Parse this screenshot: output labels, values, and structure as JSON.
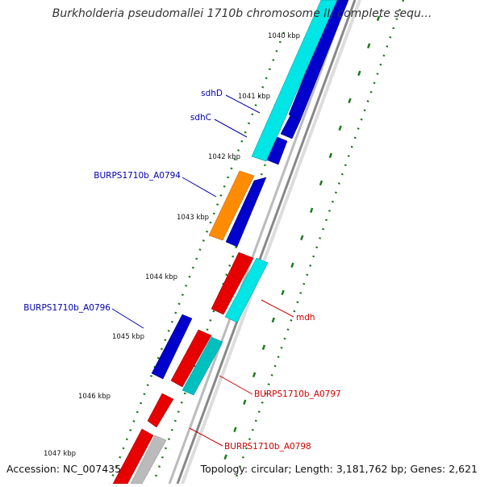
{
  "title": "Burkholderia pseudomallei 1710b chromosome II, complete sequ...",
  "footer": {
    "accession": "Accession: NC_007435",
    "summary": "Topology: circular; Length: 3,181,762 bp; Genes: 2,621"
  },
  "colors": {
    "forward_cds": "#0000cc",
    "reverse_cds": "#e60000",
    "cyan_feature": "#00e5e5",
    "orange_feature": "#ff8c00",
    "gray_feature": "#bbbbbb",
    "backbone": "#888888",
    "tick_green": "#1a7a1a",
    "label_blue": "#0000aa",
    "label_red": "#cc0000"
  },
  "ruler": {
    "1040": "1040 kbp",
    "1041": "1041 kbp",
    "1042": "1042 kbp",
    "1043": "1043 kbp",
    "1044": "1044 kbp",
    "1045": "1045 kbp",
    "1046": "1046 kbp",
    "1047": "1047 kbp"
  },
  "gene_labels": {
    "sdhD": "sdhD",
    "sdhC": "sdhC",
    "a0794": "BURPS1710b_A0794",
    "a0796": "BURPS1710b_A0796",
    "mdh": "mdh",
    "a0797": "BURPS1710b_A0797",
    "a0798": "BURPS1710b_A0798"
  }
}
